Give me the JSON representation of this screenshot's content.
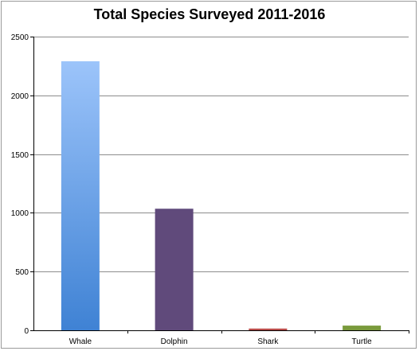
{
  "chart_data": {
    "type": "bar",
    "title": "Total Species Surveyed 2011-2016",
    "xlabel": "",
    "ylabel": "",
    "categories": [
      "Whale",
      "Dolphin",
      "Shark",
      "Turtle"
    ],
    "values": [
      2290,
      1035,
      15,
      40
    ],
    "ylim": [
      0,
      2500
    ],
    "yticks": [
      "0",
      "500",
      "1000",
      "1500",
      "2000",
      "2500"
    ],
    "grid": true,
    "legend": "none",
    "colors": [
      "#5b9bef",
      "#604a7b",
      "#b94a48",
      "#7a9a3c"
    ]
  }
}
